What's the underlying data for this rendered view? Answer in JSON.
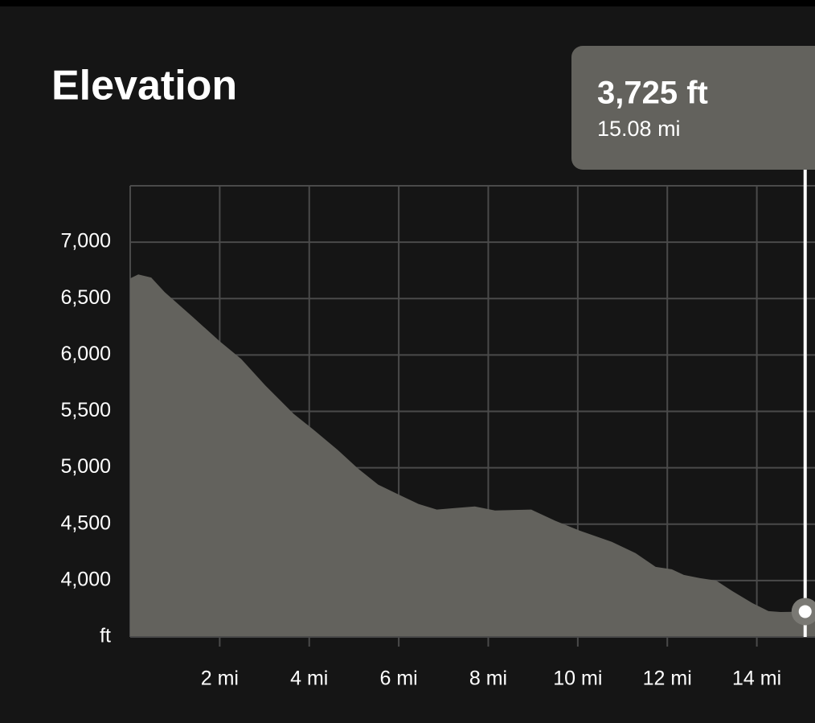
{
  "chart_data": {
    "type": "area",
    "title": "Elevation",
    "color": "#63625d",
    "x": [
      0,
      0.18,
      0.47,
      0.77,
      1.4,
      2.0,
      2.48,
      3.02,
      3.65,
      4.1,
      4.64,
      5.09,
      5.54,
      5.99,
      6.44,
      6.85,
      7.25,
      7.7,
      8.15,
      8.96,
      9.5,
      10.04,
      10.76,
      11.29,
      11.74,
      12.1,
      12.37,
      12.73,
      13.09,
      13.45,
      13.9,
      14.26,
      14.53,
      15.08,
      15.3
    ],
    "values": [
      6679,
      6714,
      6686,
      6557,
      6336,
      6121,
      5964,
      5729,
      5479,
      5336,
      5157,
      4993,
      4850,
      4764,
      4679,
      4629,
      4643,
      4657,
      4621,
      4629,
      4529,
      4443,
      4343,
      4243,
      4121,
      4100,
      4050,
      4021,
      4000,
      3907,
      3800,
      3729,
      3721,
      3725,
      3740
    ],
    "xlim": [
      0,
      15.3
    ],
    "ylim": [
      3500,
      7500
    ],
    "xticks": [
      {
        "value": 2,
        "label": "2 mi"
      },
      {
        "value": 4,
        "label": "4 mi"
      },
      {
        "value": 6,
        "label": "6 mi"
      },
      {
        "value": 8,
        "label": "8 mi"
      },
      {
        "value": 10,
        "label": "10 mi"
      },
      {
        "value": 12,
        "label": "12 mi"
      },
      {
        "value": 14,
        "label": "14 mi"
      }
    ],
    "yticks": [
      {
        "value": 3500,
        "label": "ft"
      },
      {
        "value": 4000,
        "label": "4,000"
      },
      {
        "value": 4500,
        "label": "4,500"
      },
      {
        "value": 5000,
        "label": "5,000"
      },
      {
        "value": 5500,
        "label": "5,500"
      },
      {
        "value": 6000,
        "label": "6,000"
      },
      {
        "value": 6500,
        "label": "6,500"
      },
      {
        "value": 7000,
        "label": "7,000"
      }
    ],
    "grid": true,
    "cursor": {
      "x": 15.08,
      "value": 3725,
      "value_label": "3,725 ft",
      "x_label": "15.08 mi"
    }
  }
}
